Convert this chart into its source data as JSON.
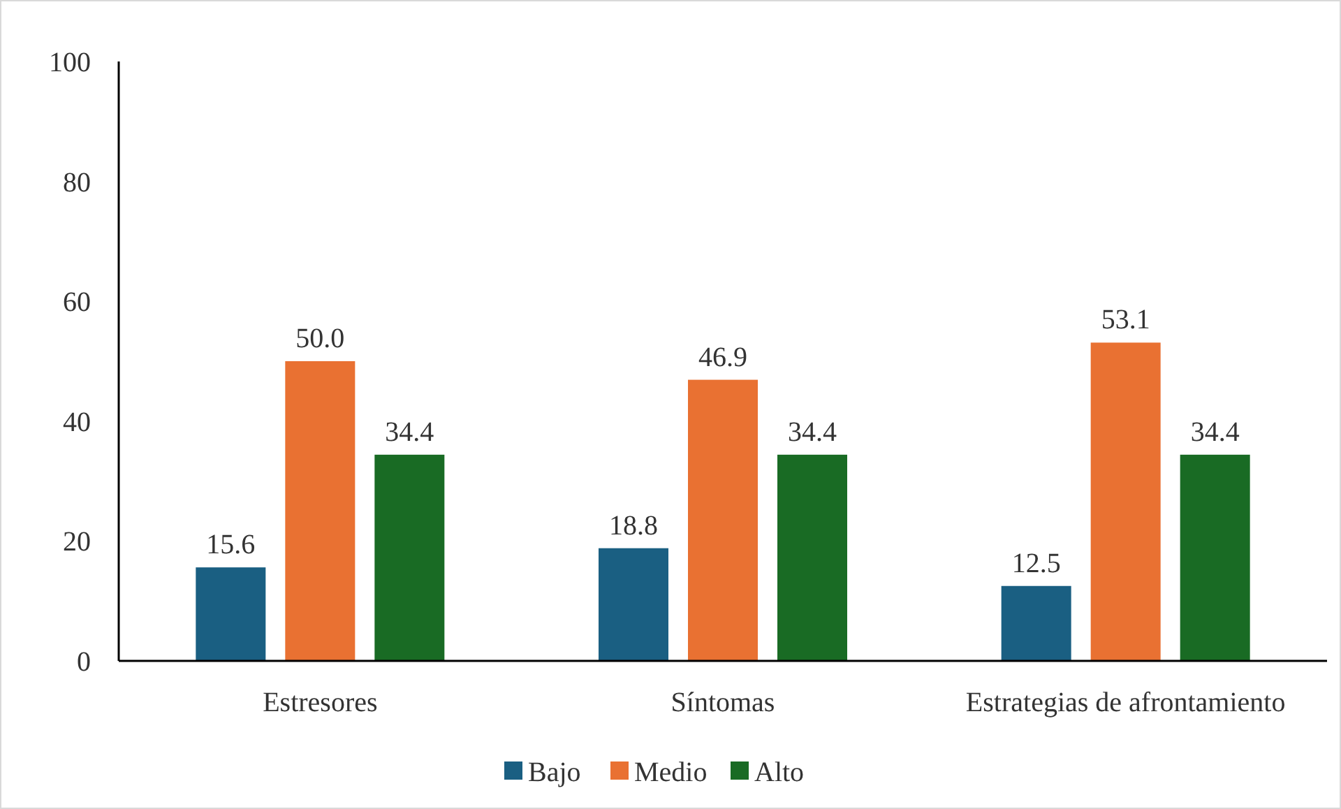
{
  "chart_data": {
    "type": "bar",
    "categories": [
      "Estresores",
      "Síntomas",
      "Estrategias de afrontamiento"
    ],
    "series": [
      {
        "name": "Bajo",
        "color": "#1a5f82",
        "values": [
          15.6,
          18.8,
          12.5
        ],
        "value_labels": [
          "15.6",
          "18.8",
          "12.5"
        ]
      },
      {
        "name": "Medio",
        "color": "#e97132",
        "values": [
          50.0,
          46.9,
          53.1
        ],
        "value_labels": [
          "50.0",
          "46.9",
          "53.1"
        ]
      },
      {
        "name": "Alto",
        "color": "#196b24",
        "values": [
          34.4,
          34.4,
          34.4
        ],
        "value_labels": [
          "34.4",
          "34.4",
          "34.4"
        ]
      }
    ],
    "ylim": [
      0,
      100
    ],
    "yticks": [
      0,
      20,
      40,
      60,
      80,
      100
    ],
    "legend": "bottom"
  }
}
